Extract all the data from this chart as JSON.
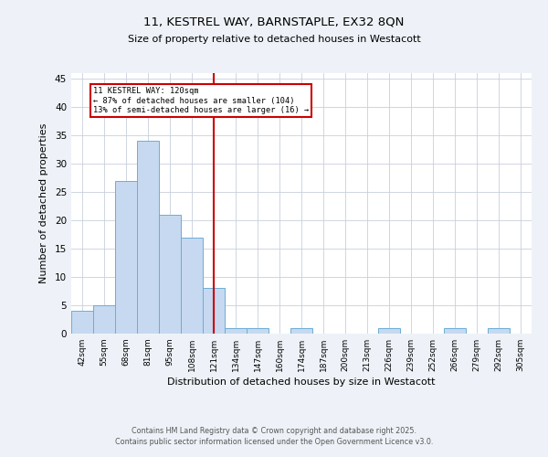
{
  "title_line1": "11, KESTREL WAY, BARNSTAPLE, EX32 8QN",
  "title_line2": "Size of property relative to detached houses in Westacott",
  "xlabel": "Distribution of detached houses by size in Westacott",
  "ylabel": "Number of detached properties",
  "bin_labels": [
    "42sqm",
    "55sqm",
    "68sqm",
    "81sqm",
    "95sqm",
    "108sqm",
    "121sqm",
    "134sqm",
    "147sqm",
    "160sqm",
    "174sqm",
    "187sqm",
    "200sqm",
    "213sqm",
    "226sqm",
    "239sqm",
    "252sqm",
    "266sqm",
    "279sqm",
    "292sqm",
    "305sqm"
  ],
  "bin_values": [
    4,
    5,
    27,
    34,
    21,
    17,
    8,
    1,
    1,
    0,
    1,
    0,
    0,
    0,
    1,
    0,
    0,
    1,
    0,
    1,
    0
  ],
  "bar_color": "#c6d9f0",
  "bar_edge_color": "#6baed6",
  "vline_x": 6,
  "vline_color": "#cc0000",
  "annotation_text": "11 KESTREL WAY: 120sqm\n← 87% of detached houses are smaller (104)\n13% of semi-detached houses are larger (16) →",
  "annotation_box_color": "#cc0000",
  "ylim": [
    0,
    46
  ],
  "yticks": [
    0,
    5,
    10,
    15,
    20,
    25,
    30,
    35,
    40,
    45
  ],
  "footer_line1": "Contains HM Land Registry data © Crown copyright and database right 2025.",
  "footer_line2": "Contains public sector information licensed under the Open Government Licence v3.0.",
  "bg_color": "#eef2f8",
  "plot_bg_color": "#ffffff",
  "grid_color": "#c8d0dc"
}
